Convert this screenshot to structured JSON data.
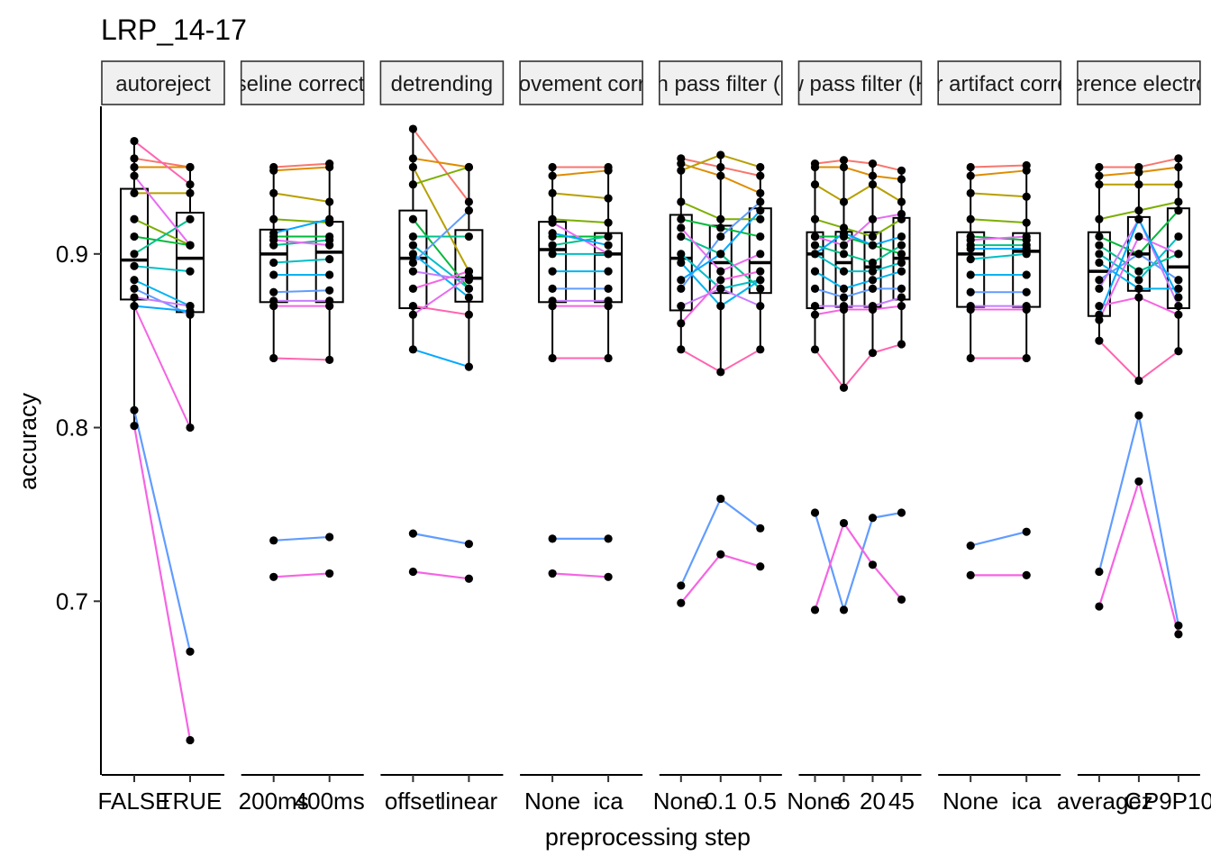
{
  "chart_data": {
    "type": "box-with-paired-lines",
    "title": "LRP_14-17",
    "xlabel": "preprocessing step",
    "ylabel": "accuracy",
    "ylim": [
      0.6,
      0.985
    ],
    "yticks": [
      0.7,
      0.8,
      0.9
    ],
    "ytick_labels": [
      "0.7",
      "0.8",
      "0.9"
    ],
    "grid": false,
    "legend": "none",
    "series_colors": [
      "#F8766D",
      "#DE8C00",
      "#B79F00",
      "#7CAE00",
      "#00BA38",
      "#00C08B",
      "#00BFC4",
      "#00B4F0",
      "#619CFF",
      "#C77CFF",
      "#F564E3",
      "#FF64B0",
      "#E76BF3",
      "#00A9FF"
    ],
    "panels": [
      {
        "strip": "autoreject",
        "levels": [
          "FALSE",
          "TRUE"
        ],
        "lines": [
          [
            0.955,
            0.95
          ],
          [
            0.95,
            0.95
          ],
          [
            0.935,
            0.935
          ],
          [
            0.92,
            0.905
          ],
          [
            0.91,
            0.905
          ],
          [
            0.9,
            0.92
          ],
          [
            0.893,
            0.89
          ],
          [
            0.885,
            0.87
          ],
          [
            0.88,
            0.865
          ],
          [
            0.875,
            0.87
          ],
          [
            0.87,
            0.8
          ],
          [
            0.965,
            0.94
          ],
          [
            0.945,
            0.905
          ],
          [
            0.87,
            0.867
          ]
        ],
        "outliers": [
          [
            0.81,
            0.671
          ],
          [
            0.801,
            0.62
          ]
        ]
      },
      {
        "strip": "baseline correction",
        "levels": [
          "200ms",
          "400ms"
        ],
        "lines": [
          [
            0.95,
            0.952
          ],
          [
            0.948,
            0.95
          ],
          [
            0.935,
            0.93
          ],
          [
            0.92,
            0.918
          ],
          [
            0.91,
            0.91
          ],
          [
            0.905,
            0.908
          ],
          [
            0.895,
            0.897
          ],
          [
            0.888,
            0.888
          ],
          [
            0.878,
            0.879
          ],
          [
            0.873,
            0.873
          ],
          [
            0.87,
            0.87
          ],
          [
            0.84,
            0.839
          ],
          [
            0.908,
            0.905
          ],
          [
            0.912,
            0.92
          ]
        ],
        "outliers": [
          [
            0.735,
            0.737
          ],
          [
            0.714,
            0.716
          ]
        ]
      },
      {
        "strip": "detrending",
        "levels": [
          "offset",
          "linear"
        ],
        "lines": [
          [
            0.972,
            0.93
          ],
          [
            0.955,
            0.95
          ],
          [
            0.95,
            0.89
          ],
          [
            0.94,
            0.95
          ],
          [
            0.92,
            0.88
          ],
          [
            0.91,
            0.91
          ],
          [
            0.905,
            0.88
          ],
          [
            0.9,
            0.875
          ],
          [
            0.895,
            0.925
          ],
          [
            0.89,
            0.885
          ],
          [
            0.88,
            0.89
          ],
          [
            0.87,
            0.865
          ],
          [
            0.865,
            0.887
          ],
          [
            0.845,
            0.835
          ]
        ],
        "outliers": [
          [
            0.739,
            0.733
          ],
          [
            0.717,
            0.713
          ]
        ]
      },
      {
        "strip": "eye movement correction",
        "levels": [
          "None",
          "ica"
        ],
        "lines": [
          [
            0.95,
            0.95
          ],
          [
            0.945,
            0.948
          ],
          [
            0.935,
            0.932
          ],
          [
            0.92,
            0.918
          ],
          [
            0.91,
            0.91
          ],
          [
            0.905,
            0.91
          ],
          [
            0.9,
            0.9
          ],
          [
            0.89,
            0.89
          ],
          [
            0.88,
            0.88
          ],
          [
            0.873,
            0.873
          ],
          [
            0.87,
            0.87
          ],
          [
            0.84,
            0.84
          ],
          [
            0.918,
            0.9
          ],
          [
            0.912,
            0.905
          ]
        ],
        "outliers": [
          [
            0.736,
            0.736
          ],
          [
            0.716,
            0.714
          ]
        ]
      },
      {
        "strip": "high pass filter (Hz)",
        "levels": [
          "None",
          "0.1",
          "0.5"
        ],
        "lines": [
          [
            0.955,
            0.95,
            0.945
          ],
          [
            0.952,
            0.945,
            0.935
          ],
          [
            0.948,
            0.957,
            0.95
          ],
          [
            0.93,
            0.92,
            0.92
          ],
          [
            0.92,
            0.915,
            0.91
          ],
          [
            0.91,
            0.9,
            0.88
          ],
          [
            0.9,
            0.88,
            0.885
          ],
          [
            0.895,
            0.87,
            0.885
          ],
          [
            0.88,
            0.91,
            0.93
          ],
          [
            0.87,
            0.88,
            0.87
          ],
          [
            0.86,
            0.885,
            0.89
          ],
          [
            0.845,
            0.832,
            0.845
          ],
          [
            0.915,
            0.89,
            0.9
          ],
          [
            0.885,
            0.9,
            0.925
          ]
        ],
        "outliers": [
          [
            0.709,
            0.759,
            0.742
          ],
          [
            0.699,
            0.727,
            0.72
          ]
        ]
      },
      {
        "strip": "low pass filter (Hz)",
        "levels": [
          "None",
          "6",
          "20",
          "45"
        ],
        "lines": [
          [
            0.952,
            0.954,
            0.952,
            0.948
          ],
          [
            0.95,
            0.95,
            0.945,
            0.943
          ],
          [
            0.94,
            0.93,
            0.94,
            0.93
          ],
          [
            0.92,
            0.915,
            0.91,
            0.92
          ],
          [
            0.91,
            0.91,
            0.905,
            0.9
          ],
          [
            0.905,
            0.9,
            0.895,
            0.905
          ],
          [
            0.9,
            0.89,
            0.89,
            0.895
          ],
          [
            0.89,
            0.88,
            0.885,
            0.89
          ],
          [
            0.88,
            0.875,
            0.88,
            0.88
          ],
          [
            0.87,
            0.87,
            0.87,
            0.875
          ],
          [
            0.865,
            0.868,
            0.868,
            0.87
          ],
          [
            0.845,
            0.823,
            0.843,
            0.848
          ],
          [
            0.91,
            0.905,
            0.92,
            0.923
          ],
          [
            0.9,
            0.912,
            0.905,
            0.91
          ]
        ],
        "outliers": [
          [
            0.751,
            0.695,
            0.748,
            0.751
          ],
          [
            0.695,
            0.745,
            0.721,
            0.701
          ]
        ]
      },
      {
        "strip": "ocular artifact correction",
        "levels": [
          "None",
          "ica"
        ],
        "lines": [
          [
            0.95,
            0.951
          ],
          [
            0.945,
            0.948
          ],
          [
            0.935,
            0.933
          ],
          [
            0.92,
            0.918
          ],
          [
            0.91,
            0.908
          ],
          [
            0.905,
            0.905
          ],
          [
            0.897,
            0.9
          ],
          [
            0.888,
            0.888
          ],
          [
            0.878,
            0.878
          ],
          [
            0.87,
            0.87
          ],
          [
            0.868,
            0.868
          ],
          [
            0.84,
            0.84
          ],
          [
            0.908,
            0.91
          ],
          [
            0.903,
            0.903
          ]
        ],
        "outliers": [
          [
            0.732,
            0.74
          ],
          [
            0.715,
            0.715
          ]
        ]
      },
      {
        "strip": "reference electrode",
        "levels": [
          "average",
          "Cz",
          "P9P10"
        ],
        "lines": [
          [
            0.95,
            0.95,
            0.955
          ],
          [
            0.945,
            0.947,
            0.95
          ],
          [
            0.94,
            0.94,
            0.94
          ],
          [
            0.92,
            0.925,
            0.93
          ],
          [
            0.91,
            0.9,
            0.925
          ],
          [
            0.905,
            0.89,
            0.9
          ],
          [
            0.9,
            0.885,
            0.91
          ],
          [
            0.895,
            0.88,
            0.88
          ],
          [
            0.885,
            0.9,
            0.885
          ],
          [
            0.88,
            0.92,
            0.87
          ],
          [
            0.87,
            0.875,
            0.865
          ],
          [
            0.85,
            0.827,
            0.844
          ],
          [
            0.862,
            0.91,
            0.9
          ],
          [
            0.865,
            0.92,
            0.875
          ]
        ],
        "outliers": [
          [
            0.717,
            0.807,
            0.686
          ],
          [
            0.697,
            0.769,
            0.681
          ]
        ]
      }
    ]
  }
}
